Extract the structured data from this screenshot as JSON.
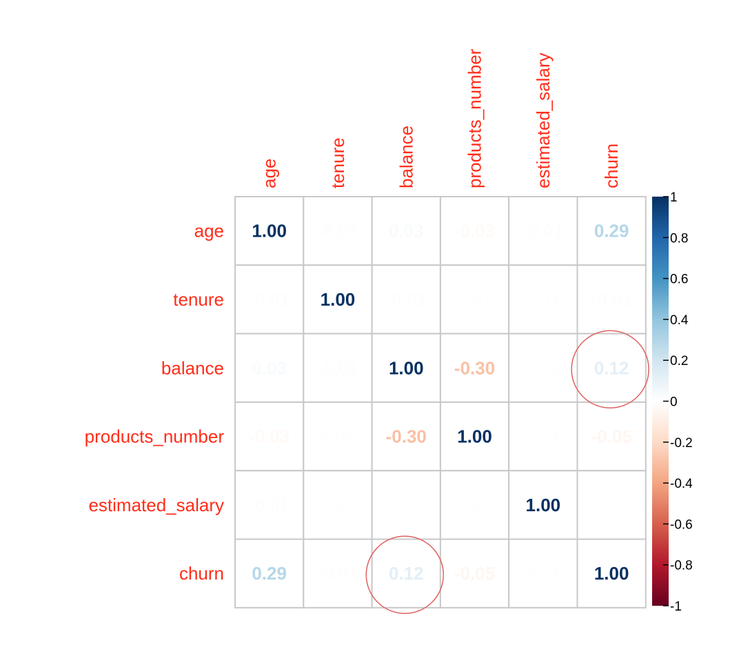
{
  "chart_data": {
    "type": "heatmap",
    "variables": [
      "age",
      "tenure",
      "balance",
      "products_number",
      "estimated_salary",
      "churn"
    ],
    "values": [
      [
        1.0,
        -0.01,
        0.03,
        -0.03,
        -0.01,
        0.29
      ],
      [
        -0.01,
        1.0,
        -0.01,
        0.01,
        0.01,
        -0.01
      ],
      [
        0.03,
        -0.01,
        1.0,
        -0.3,
        0.01,
        0.12
      ],
      [
        -0.03,
        0.01,
        -0.3,
        1.0,
        0.01,
        -0.05
      ],
      [
        -0.01,
        0.01,
        0.01,
        0.01,
        1.0,
        0.01
      ],
      [
        0.29,
        -0.01,
        0.12,
        -0.05,
        0.01,
        1.0
      ]
    ],
    "value_labels": [
      [
        "1.00",
        "-0.01",
        "0.03",
        "-0.03",
        "-0.01",
        "0.29"
      ],
      [
        "-0.01",
        "1.00",
        "-0.01",
        "0.01",
        "0.01",
        "-0.01"
      ],
      [
        "0.03",
        "-0.01",
        "1.00",
        "-0.30",
        "0.01",
        "0.12"
      ],
      [
        "-0.03",
        "0.01",
        "-0.30",
        "1.00",
        "0.01",
        "-0.05"
      ],
      [
        "-0.01",
        "0.01",
        "0.01",
        "0.01",
        "1.00",
        "0.01"
      ],
      [
        "0.29",
        "-0.01",
        "0.12",
        "-0.05",
        "0.01",
        "1.00"
      ]
    ],
    "colorbar": {
      "range": [
        -1,
        1
      ],
      "ticks": [
        "1",
        "0.8",
        "0.6",
        "0.4",
        "0.2",
        "0",
        "-0.2",
        "-0.4",
        "-0.6",
        "-0.8",
        "-1"
      ],
      "position": "right"
    },
    "label_color": "#ff2d1a",
    "grid": true,
    "annotations": [
      {
        "type": "circle",
        "row": "balance",
        "column": "churn",
        "color": "#e06060"
      },
      {
        "type": "circle",
        "row": "churn",
        "column": "balance",
        "color": "#e06060"
      }
    ]
  }
}
